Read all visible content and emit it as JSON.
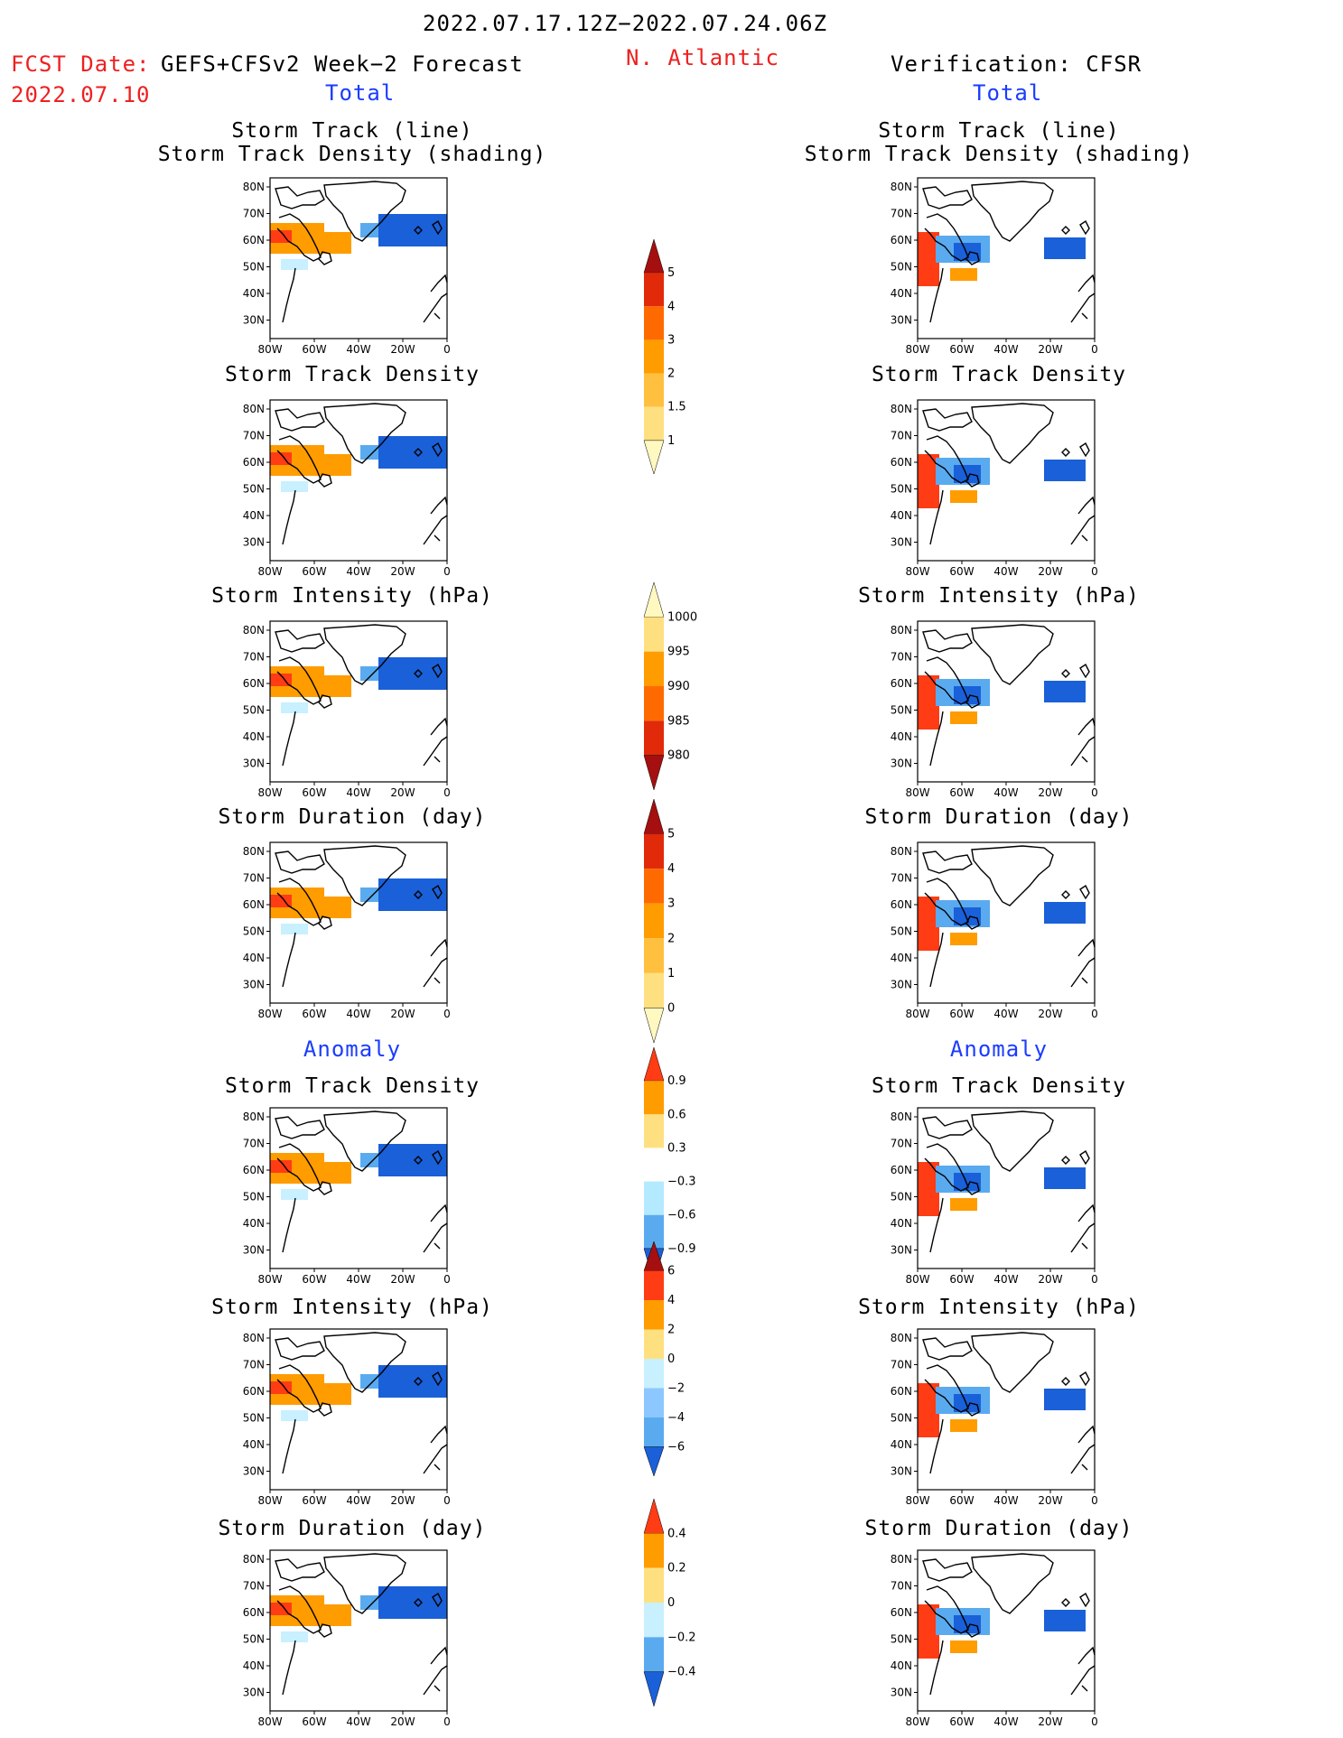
{
  "header": {
    "period": "2022.07.17.12Z−2022.07.24.06Z",
    "fcst_label": "FCST Date:",
    "fcst_model": "GEFS+CFSv2 Week−2 Forecast",
    "fcst_date": "2022.07.10",
    "region": "N. Atlantic",
    "verification": "Verification: CFSR"
  },
  "sections": {
    "total": "Total",
    "anomaly": "Anomaly"
  },
  "titles": {
    "track_line": "Storm Track (line)",
    "track_density_shading": "Storm Track Density (shading)",
    "track_density": "Storm Track Density",
    "intensity": "Storm Intensity (hPa)",
    "duration": "Storm Duration (day)"
  },
  "axes": {
    "lat_labels": [
      "80N",
      "70N",
      "60N",
      "50N",
      "40N",
      "30N"
    ],
    "lon_labels": [
      "80W",
      "60W",
      "40W",
      "20W",
      "0"
    ]
  },
  "colorbars": [
    {
      "id": "density",
      "labels": [
        "5",
        "4",
        "3",
        "2",
        "1.5",
        "1"
      ],
      "colors": [
        "#a50f0f",
        "#e02a0a",
        "#ff6a00",
        "#ff9c00",
        "#ffc040",
        "#ffe080",
        "#fff8c0"
      ]
    },
    {
      "id": "intensity",
      "labels": [
        "1000",
        "995",
        "990",
        "985",
        "980"
      ],
      "colors": [
        "#fff8c0",
        "#ffe080",
        "#ff9c00",
        "#ff6a00",
        "#e02a0a",
        "#a50f0f"
      ]
    },
    {
      "id": "duration",
      "labels": [
        "5",
        "4",
        "3",
        "2",
        "1",
        "0"
      ],
      "colors": [
        "#a50f0f",
        "#e02a0a",
        "#ff6a00",
        "#ff9c00",
        "#ffc040",
        "#ffe080",
        "#fff8c0"
      ]
    },
    {
      "id": "density_anom",
      "labels": [
        "0.9",
        "0.6",
        "0.3",
        "−0.3",
        "−0.6",
        "−0.9"
      ],
      "colors": [
        "#ff3c14",
        "#ff9c00",
        "#ffe080",
        "#ffffff",
        "#b4eaff",
        "#5aaaf0",
        "#1a60d8"
      ]
    },
    {
      "id": "intensity_anom",
      "labels": [
        "6",
        "4",
        "2",
        "0",
        "−2",
        "−4",
        "−6"
      ],
      "colors": [
        "#a50f0f",
        "#ff3c14",
        "#ff9c00",
        "#ffe080",
        "#c8f0ff",
        "#8cc8ff",
        "#5aaaf0",
        "#1a60d8"
      ]
    },
    {
      "id": "duration_anom",
      "labels": [
        "0.4",
        "0.2",
        "0",
        "−0.2",
        "−0.4"
      ],
      "colors": [
        "#ff3c14",
        "#ff9c00",
        "#ffe080",
        "#c8f0ff",
        "#5aaaf0",
        "#1a60d8"
      ]
    }
  ]
}
